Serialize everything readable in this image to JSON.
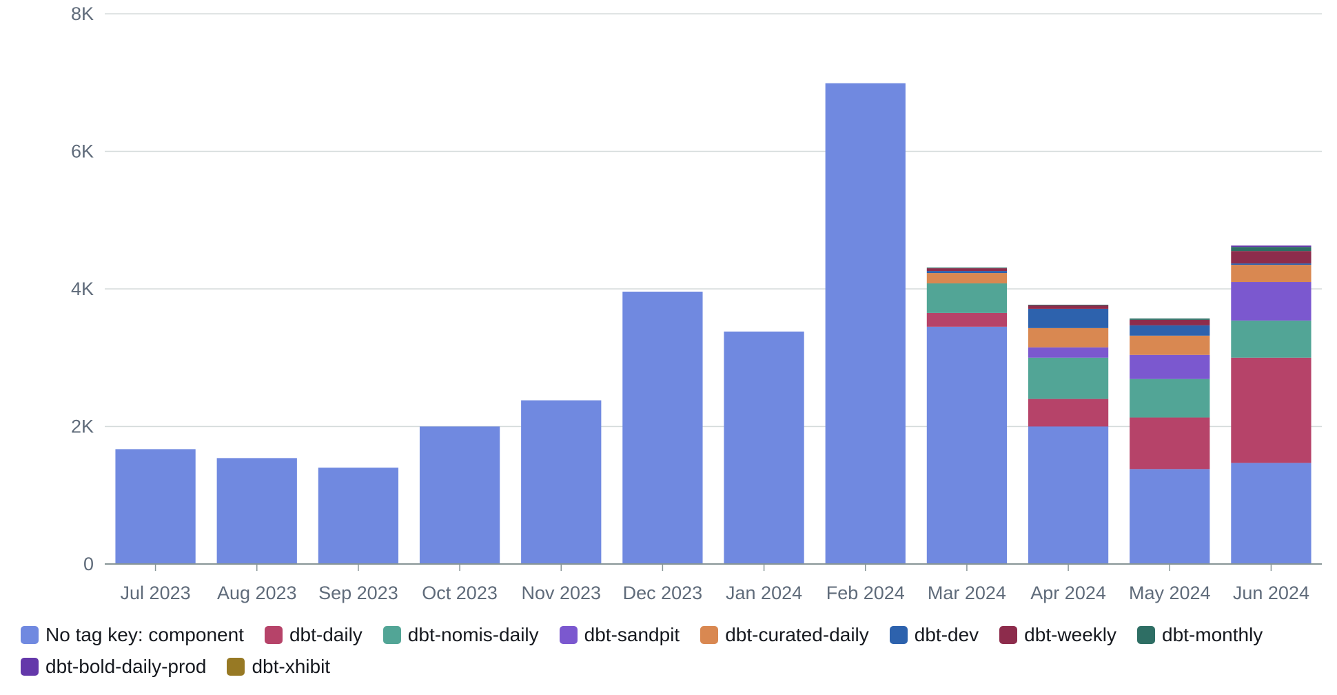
{
  "chart_data": {
    "type": "bar",
    "stacked": true,
    "categories": [
      "Jul 2023",
      "Aug 2023",
      "Sep 2023",
      "Oct 2023",
      "Nov 2023",
      "Dec 2023",
      "Jan 2024",
      "Feb 2024",
      "Mar 2024",
      "Apr 2024",
      "May 2024",
      "Jun 2024"
    ],
    "ylim": [
      0,
      8000
    ],
    "yticks": [
      {
        "value": 0,
        "label": "0"
      },
      {
        "value": 2000,
        "label": "2K"
      },
      {
        "value": 4000,
        "label": "4K"
      },
      {
        "value": 6000,
        "label": "6K"
      },
      {
        "value": 8000,
        "label": "8K"
      }
    ],
    "grid": true,
    "legend_position": "bottom",
    "series": [
      {
        "name": "No tag key: component",
        "color": "#7089e0",
        "values": [
          1670,
          1540,
          1400,
          2000,
          2380,
          3960,
          3380,
          6990,
          3450,
          2000,
          1380,
          1470
        ]
      },
      {
        "name": "dbt-daily",
        "color": "#b64369",
        "values": [
          0,
          0,
          0,
          0,
          0,
          0,
          0,
          0,
          200,
          400,
          750,
          1530
        ]
      },
      {
        "name": "dbt-nomis-daily",
        "color": "#52a596",
        "values": [
          0,
          0,
          0,
          0,
          0,
          0,
          0,
          0,
          430,
          600,
          560,
          540
        ]
      },
      {
        "name": "dbt-sandpit",
        "color": "#7b58cf",
        "values": [
          0,
          0,
          0,
          0,
          0,
          0,
          0,
          0,
          0,
          150,
          350,
          560
        ]
      },
      {
        "name": "dbt-curated-daily",
        "color": "#d98851",
        "values": [
          0,
          0,
          0,
          0,
          0,
          0,
          0,
          0,
          150,
          280,
          280,
          250
        ]
      },
      {
        "name": "dbt-dev",
        "color": "#2d62ad",
        "values": [
          0,
          0,
          0,
          0,
          0,
          0,
          0,
          0,
          30,
          280,
          150,
          20
        ]
      },
      {
        "name": "dbt-weekly",
        "color": "#8d2c4c",
        "values": [
          0,
          0,
          0,
          0,
          0,
          0,
          0,
          0,
          40,
          50,
          80,
          180
        ]
      },
      {
        "name": "dbt-monthly",
        "color": "#2e6e64",
        "values": [
          0,
          0,
          0,
          0,
          0,
          0,
          0,
          0,
          10,
          10,
          20,
          60
        ]
      },
      {
        "name": "dbt-bold-daily-prod",
        "color": "#6438aa",
        "values": [
          0,
          0,
          0,
          0,
          0,
          0,
          0,
          0,
          0,
          0,
          0,
          20
        ]
      },
      {
        "name": "dbt-xhibit",
        "color": "#977924",
        "values": [
          0,
          0,
          0,
          0,
          0,
          0,
          0,
          0,
          0,
          0,
          0,
          0
        ]
      }
    ]
  }
}
